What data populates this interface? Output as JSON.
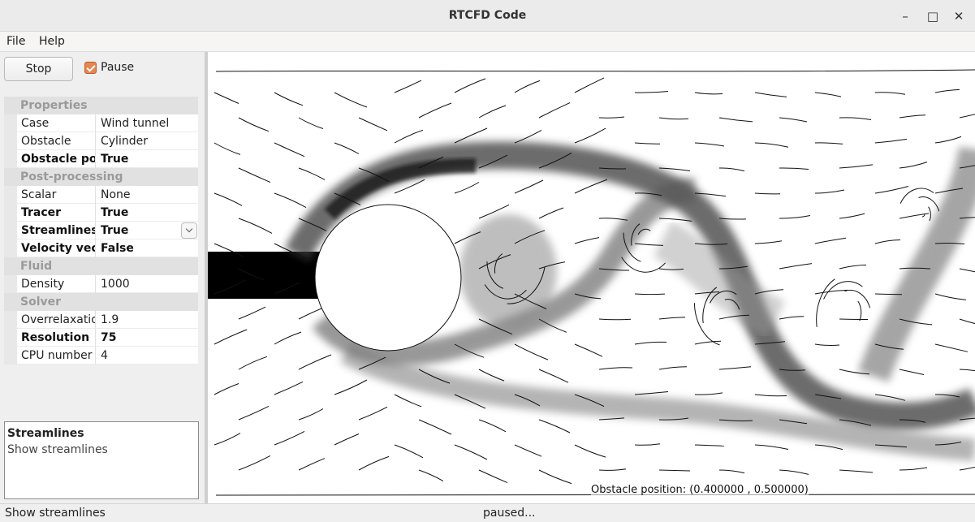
{
  "window": {
    "title": "RTCFD Code",
    "controls": {
      "minimize": "–",
      "maximize": "□",
      "close": "✕"
    }
  },
  "menu": {
    "file": "File",
    "help": "Help"
  },
  "controls": {
    "stop_label": "Stop",
    "pause_label": "Pause",
    "pause_checked": true,
    "accent_color": "#e88550"
  },
  "properties": {
    "sections": [
      {
        "title": "Properties",
        "rows": [
          {
            "name": "Case",
            "value": "Wind tunnel",
            "bold": false
          },
          {
            "name": "Obstacle",
            "value": "Cylinder",
            "bold": false
          },
          {
            "name": "Obstacle position",
            "value": "True",
            "bold": true
          }
        ]
      },
      {
        "title": "Post-processing",
        "rows": [
          {
            "name": "Scalar",
            "value": "None",
            "bold": false
          },
          {
            "name": "Tracer",
            "value": "True",
            "bold": true
          },
          {
            "name": "Streamlines",
            "value": "True",
            "bold": true,
            "dropdown": true
          },
          {
            "name": "Velocity vectors",
            "value": "False",
            "bold": true
          }
        ]
      },
      {
        "title": "Fluid",
        "rows": [
          {
            "name": "Density",
            "value": "1000",
            "bold": false
          }
        ]
      },
      {
        "title": "Solver",
        "rows": [
          {
            "name": "Overrelaxation",
            "value": "1.9",
            "bold": false
          },
          {
            "name": "Resolution",
            "value": "75",
            "bold": true
          },
          {
            "name": "CPU number",
            "value": "4",
            "bold": false
          }
        ]
      }
    ]
  },
  "help": {
    "title": "Streamlines",
    "text": "Show streamlines"
  },
  "canvas": {
    "obstacle_position_text": "Obstacle position: (0.400000 , 0.500000)"
  },
  "status": {
    "left": "Show streamlines",
    "center": "paused..."
  }
}
